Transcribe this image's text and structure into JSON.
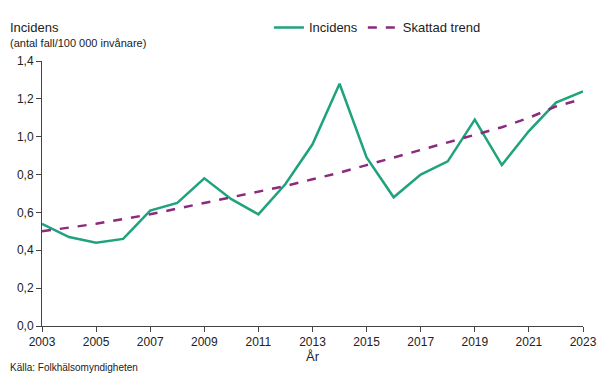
{
  "chart_data": {
    "type": "line",
    "ylabel": "Incidens",
    "ylabel_sub": "(antal fall/100 000 invånare)",
    "xlabel": "År",
    "source": "Källa: Folkhälsomyndigheten",
    "x": [
      2003,
      2004,
      2005,
      2006,
      2007,
      2008,
      2009,
      2010,
      2011,
      2012,
      2013,
      2014,
      2015,
      2016,
      2017,
      2018,
      2019,
      2020,
      2021,
      2022,
      2023
    ],
    "series": [
      {
        "name": "Incidens",
        "color": "#1fa37d",
        "line_style": "solid",
        "values": [
          0.54,
          0.47,
          0.44,
          0.46,
          0.61,
          0.65,
          0.78,
          0.67,
          0.59,
          0.75,
          0.96,
          1.28,
          0.89,
          0.68,
          0.8,
          0.87,
          1.09,
          0.85,
          1.03,
          1.18,
          1.24
        ]
      },
      {
        "name": "Skattad trend",
        "color": "#8b2a7e",
        "line_style": "dash",
        "values": [
          0.5,
          0.52,
          0.54,
          0.565,
          0.59,
          0.62,
          0.65,
          0.68,
          0.71,
          0.74,
          0.775,
          0.81,
          0.85,
          0.89,
          0.93,
          0.97,
          1.01,
          1.05,
          1.1,
          1.16,
          1.2
        ]
      }
    ],
    "xlim": [
      2003,
      2023
    ],
    "xticks": [
      2003,
      2005,
      2007,
      2009,
      2011,
      2013,
      2015,
      2017,
      2019,
      2021,
      2023
    ],
    "ylim": [
      0,
      1.4
    ],
    "yticks": [
      {
        "value": 0,
        "label": "0,0"
      },
      {
        "value": 0.2,
        "label": "0,2"
      },
      {
        "value": 0.4,
        "label": "0,4"
      },
      {
        "value": 0.6,
        "label": "0,6"
      },
      {
        "value": 0.8,
        "label": "0,8"
      },
      {
        "value": 1.0,
        "label": "1,0"
      },
      {
        "value": 1.2,
        "label": "1,2"
      },
      {
        "value": 1.4,
        "label": "1,4"
      }
    ],
    "grid": false,
    "legend": "top"
  }
}
